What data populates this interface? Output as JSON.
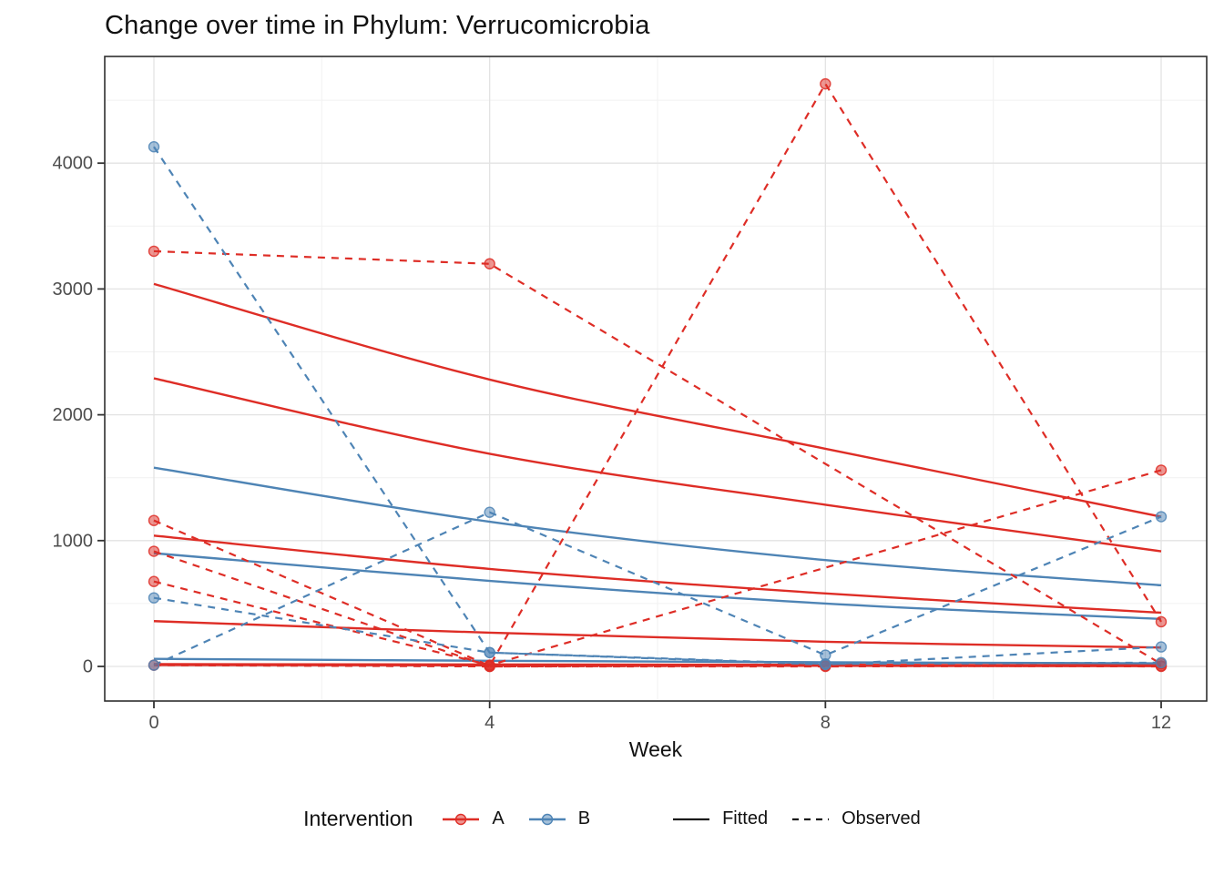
{
  "chart_data": {
    "type": "line",
    "title": "Change over time in Phylum: Verrucomicrobia",
    "xlabel": "Week",
    "ylabel": "",
    "x_ticks": [
      0,
      4,
      8,
      12
    ],
    "x_minor": [
      2,
      6,
      10
    ],
    "y_ticks": [
      0,
      1000,
      2000,
      3000,
      4000
    ],
    "y_minor": [
      500,
      1500,
      2500,
      3500,
      4500
    ],
    "xlim": [
      -0.59,
      12.54
    ],
    "ylim": [
      0,
      4849
    ],
    "grid": true,
    "legend_position": "bottom",
    "colors": {
      "A": "#DE2D26",
      "B": "#4E84B5",
      "grid_major": "#E3E3E3",
      "grid_minor": "#F1F1F1",
      "panel_border": "#2F2F2F",
      "tick": "#333333",
      "tick_label": "#4D4D4D",
      "legend_key": "#1A1A1A"
    },
    "series": [
      {
        "intervention": "A",
        "linetype": "Fitted",
        "points": [
          [
            0,
            3040
          ],
          [
            4,
            2280
          ],
          [
            8,
            1730
          ],
          [
            12,
            1190
          ]
        ]
      },
      {
        "intervention": "A",
        "linetype": "Fitted",
        "points": [
          [
            0,
            2290
          ],
          [
            4,
            1690
          ],
          [
            8,
            1285
          ],
          [
            12,
            915
          ]
        ]
      },
      {
        "intervention": "A",
        "linetype": "Fitted",
        "points": [
          [
            0,
            1040
          ],
          [
            4,
            775
          ],
          [
            8,
            580
          ],
          [
            12,
            427
          ]
        ]
      },
      {
        "intervention": "A",
        "linetype": "Fitted",
        "points": [
          [
            0,
            360
          ],
          [
            4,
            268
          ],
          [
            8,
            196
          ],
          [
            12,
            150
          ]
        ]
      },
      {
        "intervention": "A",
        "linetype": "Fitted",
        "points": [
          [
            0,
            15
          ],
          [
            4,
            12
          ],
          [
            8,
            9
          ],
          [
            12,
            6
          ]
        ],
        "width": 3.4
      },
      {
        "intervention": "B",
        "linetype": "Fitted",
        "points": [
          [
            0,
            1580
          ],
          [
            4,
            1150
          ],
          [
            8,
            845
          ],
          [
            12,
            645
          ]
        ]
      },
      {
        "intervention": "B",
        "linetype": "Fitted",
        "points": [
          [
            0,
            900
          ],
          [
            4,
            680
          ],
          [
            8,
            500
          ],
          [
            12,
            377
          ]
        ]
      },
      {
        "intervention": "B",
        "linetype": "Fitted",
        "points": [
          [
            0,
            60
          ],
          [
            4,
            45
          ],
          [
            8,
            33
          ],
          [
            12,
            25
          ]
        ]
      },
      {
        "intervention": "A",
        "linetype": "Observed",
        "points": [
          [
            0,
            3300
          ],
          [
            4,
            3200
          ],
          [
            12,
            20
          ]
        ]
      },
      {
        "intervention": "A",
        "linetype": "Observed",
        "points": [
          [
            0,
            1160
          ],
          [
            4,
            5
          ],
          [
            8,
            4630
          ],
          [
            12,
            355
          ]
        ]
      },
      {
        "intervention": "A",
        "linetype": "Observed",
        "points": [
          [
            0,
            675
          ],
          [
            4,
            10
          ],
          [
            12,
            1560
          ]
        ]
      },
      {
        "intervention": "A",
        "linetype": "Observed",
        "points": [
          [
            0,
            915
          ],
          [
            4,
            0
          ],
          [
            8,
            0
          ],
          [
            12,
            5
          ]
        ]
      },
      {
        "intervention": "A",
        "linetype": "Observed",
        "points": [
          [
            0,
            10
          ],
          [
            4,
            0
          ],
          [
            8,
            5
          ],
          [
            12,
            0
          ]
        ]
      },
      {
        "intervention": "B",
        "linetype": "Observed",
        "points": [
          [
            0,
            4130
          ],
          [
            4,
            110
          ],
          [
            8,
            20
          ],
          [
            12,
            30
          ]
        ]
      },
      {
        "intervention": "B",
        "linetype": "Observed",
        "points": [
          [
            0,
            10
          ],
          [
            4,
            1225
          ],
          [
            8,
            90
          ],
          [
            12,
            1190
          ]
        ]
      },
      {
        "intervention": "B",
        "linetype": "Observed",
        "points": [
          [
            0,
            545
          ],
          [
            4,
            110
          ],
          [
            8,
            15
          ],
          [
            12,
            155
          ]
        ]
      }
    ]
  },
  "legend": {
    "title": "Intervention",
    "group_a": "A",
    "group_b": "B",
    "fitted": "Fitted",
    "observed": "Observed"
  }
}
